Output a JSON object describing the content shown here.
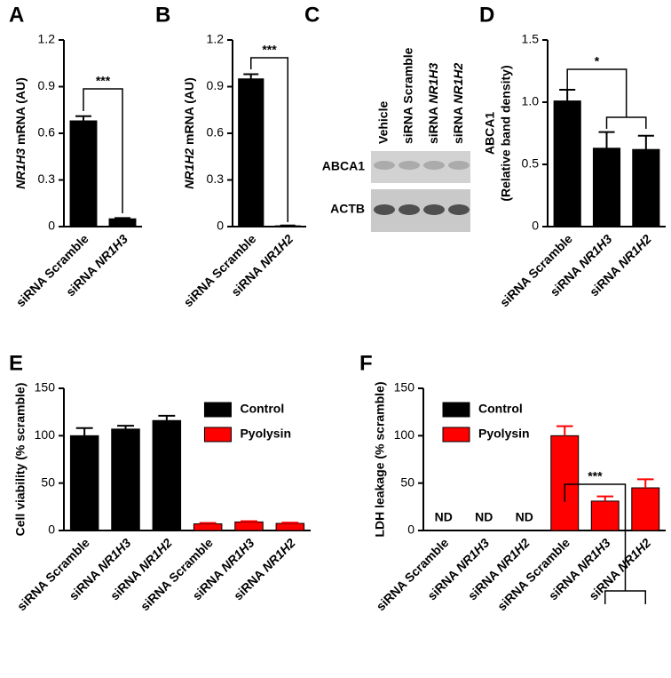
{
  "chart_data": [
    {
      "panel": "A",
      "type": "bar",
      "categories": [
        "siRNA Scramble",
        "siRNA NR1H3"
      ],
      "values": [
        0.68,
        0.05
      ],
      "errors": [
        0.03,
        0.005
      ],
      "color": "#000000",
      "ylabel": "NR1H3 mRNA (AU)",
      "ylim": [
        0,
        1.2
      ],
      "yticks": [
        0,
        0.3,
        0.6,
        0.9,
        1.2
      ],
      "grid": false,
      "significance": "***"
    },
    {
      "panel": "B",
      "type": "bar",
      "categories": [
        "siRNA Scramble",
        "siRNA NR1H2"
      ],
      "values": [
        0.95,
        0.005
      ],
      "errors": [
        0.03,
        0.002
      ],
      "color": "#000000",
      "ylabel": "NR1H2 mRNA (AU)",
      "ylim": [
        0,
        1.2
      ],
      "yticks": [
        0,
        0.3,
        0.6,
        0.9,
        1.2
      ],
      "grid": false,
      "significance": "***"
    },
    {
      "panel": "C",
      "type": "blot",
      "lanes": [
        "Vehicle",
        "siRNA Scramble",
        "siRNA NR1H3",
        "siRNA NR1H2"
      ],
      "rows": [
        "ABCA1",
        "ACTB"
      ]
    },
    {
      "panel": "D",
      "type": "bar",
      "categories": [
        "siRNA Scramble",
        "siRNA NR1H3",
        "siRNA NR1H2"
      ],
      "values": [
        1.01,
        0.63,
        0.62
      ],
      "errors": [
        0.09,
        0.13,
        0.11
      ],
      "color": "#000000",
      "ylabel": [
        "ABCA1",
        "(Relative band density)"
      ],
      "ylim": [
        0,
        1.5
      ],
      "yticks": [
        0,
        0.5,
        {
          "value": 1,
          "label": "1.0"
        },
        1.5
      ],
      "grid": false,
      "significance": "*"
    },
    {
      "panel": "E",
      "type": "bar",
      "categories": [
        "siRNA Scramble",
        "siRNA NR1H3",
        "siRNA NR1H2",
        "siRNA Scramble",
        "siRNA NR1H3",
        "siRNA NR1H2"
      ],
      "series": [
        {
          "name": "Control",
          "color": "#000000",
          "values": [
            100,
            107,
            116,
            null,
            null,
            null
          ],
          "errors": [
            8,
            3.5,
            5,
            null,
            null,
            null
          ]
        },
        {
          "name": "Pyolysin",
          "color": "#ff0000",
          "values": [
            null,
            null,
            null,
            7,
            9,
            7.5
          ],
          "errors": [
            null,
            null,
            null,
            1,
            0.8,
            0.8
          ]
        }
      ],
      "ylabel": "Cell viability (% scramble)",
      "ylim": [
        0,
        150
      ],
      "yticks": [
        0,
        50,
        100,
        150
      ],
      "grid": false,
      "legend": "upper right"
    },
    {
      "panel": "F",
      "type": "bar",
      "categories": [
        "siRNA Scramble",
        "siRNA NR1H3",
        "siRNA NR1H2",
        "siRNA Scramble",
        "siRNA NR1H3",
        "siRNA NR1H2"
      ],
      "series": [
        {
          "name": "Control",
          "color": "#000000",
          "values": [
            null,
            null,
            null,
            null,
            null,
            null
          ],
          "nd_labels": [
            "ND",
            "ND",
            "ND",
            null,
            null,
            null
          ]
        },
        {
          "name": "Pyolysin",
          "color": "#ff0000",
          "values": [
            null,
            null,
            null,
            100,
            31,
            45
          ],
          "errors": [
            null,
            null,
            null,
            10,
            5,
            9
          ]
        }
      ],
      "ylabel": "LDH leakage (% scramble)",
      "ylim": [
        0,
        150
      ],
      "yticks": [
        0,
        50,
        100,
        150
      ],
      "grid": false,
      "legend": "upper left",
      "significance": "***"
    }
  ]
}
